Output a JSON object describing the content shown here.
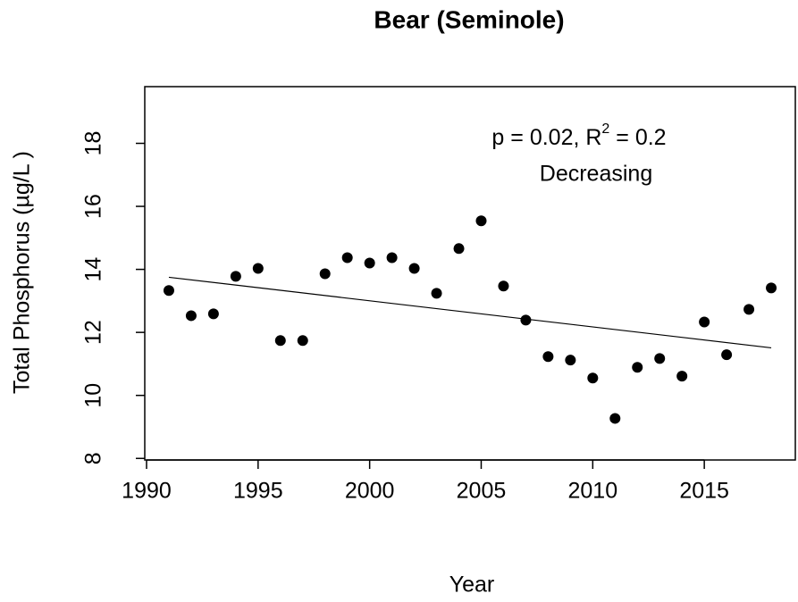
{
  "chart_data": {
    "type": "scatter",
    "title": "Bear (Seminole)",
    "x_label": "Year",
    "y_label": "Total Phosphorus (µg/L )",
    "annotation": [
      "p = 0.02, R",
      "2",
      " = 0.2"
    ],
    "annotation_trend": "Decreasing",
    "color": "#000000",
    "x": [
      1991,
      1992,
      1993,
      1994,
      1995,
      1996,
      1997,
      1998,
      1999,
      2000,
      2001,
      2002,
      2003,
      2004,
      2005,
      2006,
      2007,
      2008,
      2009,
      2010,
      2011,
      2012,
      2013,
      2014,
      2015,
      2016,
      2017,
      2018
    ],
    "values": [
      13.33,
      12.53,
      12.59,
      13.78,
      14.03,
      11.74,
      11.74,
      13.86,
      14.37,
      14.2,
      14.37,
      14.03,
      13.24,
      14.66,
      15.54,
      13.47,
      12.39,
      11.23,
      11.12,
      10.55,
      9.27,
      10.89,
      11.17,
      10.61,
      12.33,
      11.29,
      12.73,
      13.41
    ],
    "trend": {
      "x": [
        1991,
        2018
      ],
      "values": [
        13.75,
        11.51
      ]
    },
    "xlim": [
      1989.92,
      2019.08
    ],
    "ylim": [
      7.95,
      19.8
    ],
    "xticks": [
      1990,
      1995,
      2000,
      2005,
      2010,
      2015
    ],
    "yticks": [
      8,
      10,
      12,
      14,
      16,
      18
    ]
  }
}
